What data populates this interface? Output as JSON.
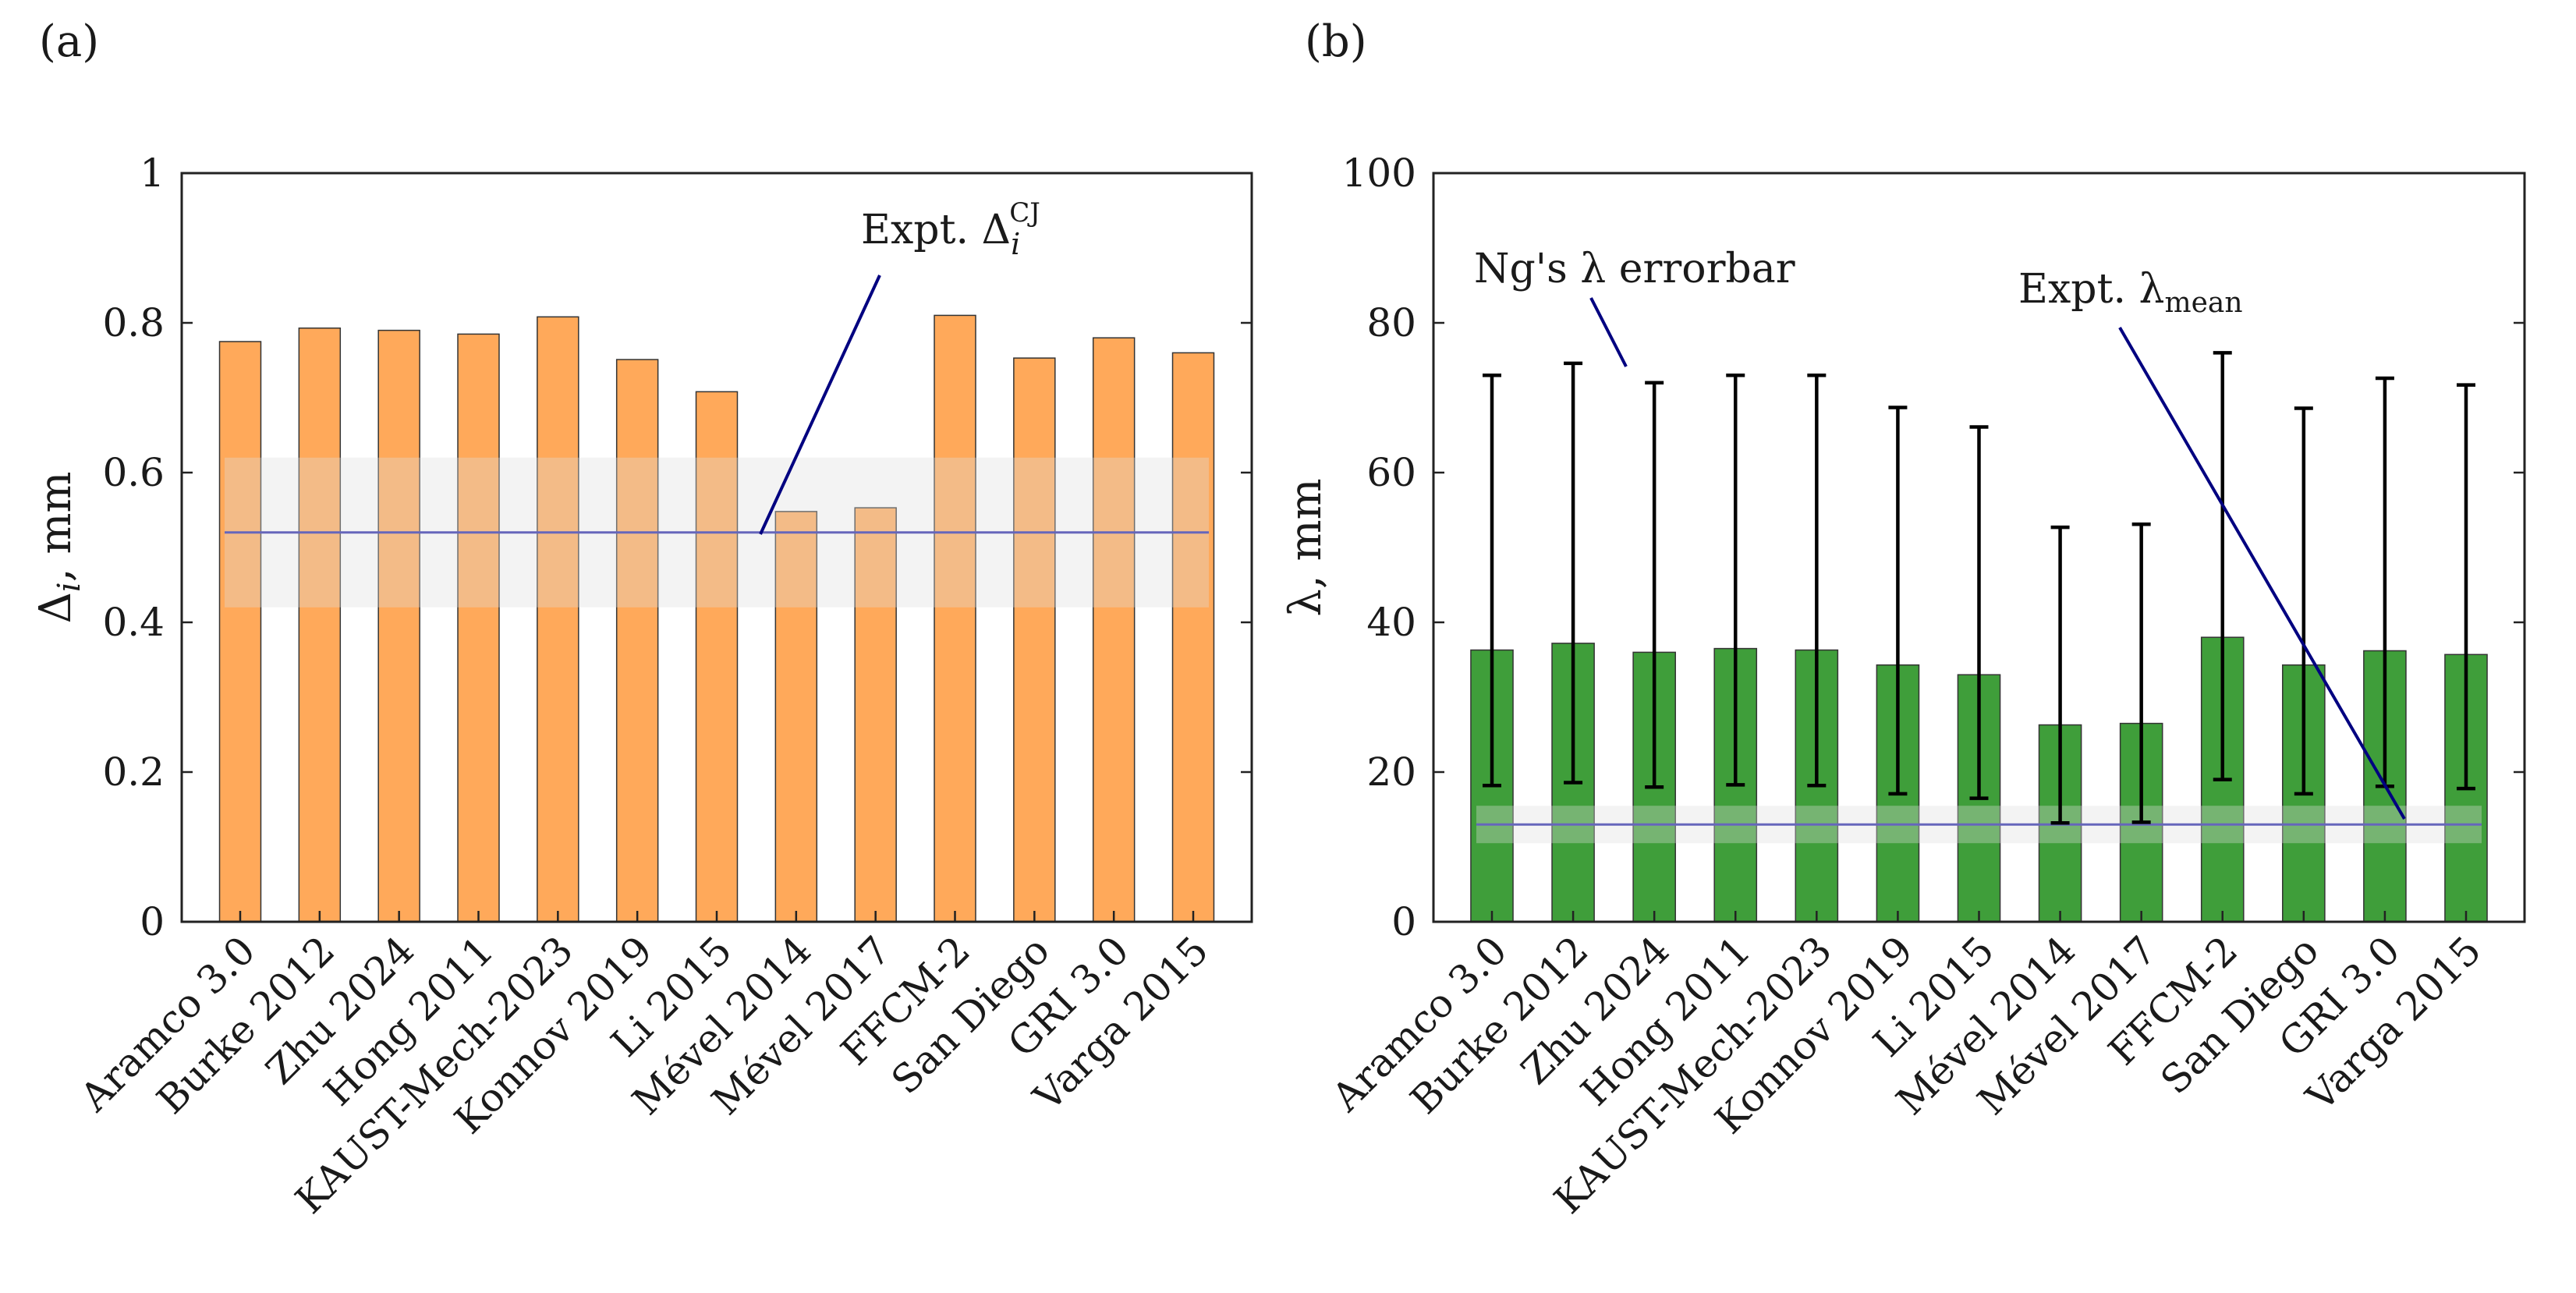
{
  "chart_data": [
    {
      "type": "bar",
      "panel_label": "(a)",
      "title": "",
      "ylabel": "Δ_i, mm",
      "ylabel_parts": {
        "symbol": "Δ",
        "sub": "i",
        "rest": ", mm"
      },
      "ylim": [
        0,
        1
      ],
      "yticks": [
        0,
        0.2,
        0.4,
        0.6,
        0.8,
        1
      ],
      "ytick_labels": [
        "0",
        "0.2",
        "0.4",
        "0.6",
        "0.8",
        "1"
      ],
      "categories": [
        "Aramco 3.0",
        "Burke 2012",
        "Zhu 2024",
        "Hong 2011",
        "KAUST-Mech-2023",
        "Konnov 2019",
        "Li 2015",
        "Mével 2014",
        "Mével 2017",
        "FFCM-2",
        "San Diego",
        "GRI 3.0",
        "Varga 2015"
      ],
      "values": [
        0.775,
        0.793,
        0.79,
        0.785,
        0.808,
        0.751,
        0.708,
        0.548,
        0.553,
        0.81,
        0.753,
        0.78,
        0.76
      ],
      "bar_color": "#ffa95a",
      "reference_line": {
        "value": 0.52,
        "band": [
          0.42,
          0.62
        ],
        "color": "#6666bb"
      },
      "annotation": {
        "text": "Expt. Δ_i^CJ",
        "main": "Expt. Δ",
        "sub": "i",
        "sup": "CJ",
        "arrow_color": "#000080"
      }
    },
    {
      "type": "bar",
      "panel_label": "(b)",
      "title": "",
      "ylabel": "λ, mm",
      "ylim": [
        0,
        100
      ],
      "yticks": [
        0,
        20,
        40,
        60,
        80,
        100
      ],
      "ytick_labels": [
        "0",
        "20",
        "40",
        "60",
        "80",
        "100"
      ],
      "categories": [
        "Aramco 3.0",
        "Burke 2012",
        "Zhu 2024",
        "Hong 2011",
        "KAUST-Mech-2023",
        "Konnov 2019",
        "Li 2015",
        "Mével 2014",
        "Mével 2017",
        "FFCM-2",
        "San Diego",
        "GRI 3.0",
        "Varga 2015"
      ],
      "values": [
        36.3,
        37.2,
        36.0,
        36.5,
        36.3,
        34.3,
        33.0,
        26.3,
        26.5,
        38.0,
        34.3,
        36.2,
        35.7
      ],
      "error_low": [
        18.2,
        18.6,
        18.0,
        18.3,
        18.2,
        17.1,
        16.5,
        13.2,
        13.3,
        19.0,
        17.1,
        18.1,
        17.8
      ],
      "error_high": [
        73.0,
        74.6,
        72.0,
        73.0,
        73.0,
        68.7,
        66.1,
        52.7,
        53.1,
        76.0,
        68.6,
        72.6,
        71.7
      ],
      "bar_color": "#3f9e3a",
      "reference_line": {
        "value": 13.0,
        "band": [
          10.5,
          15.5
        ],
        "color": "#6666bb"
      },
      "annotations": [
        {
          "text": "Ng's λ errorbar",
          "arrow_color": "#000080"
        },
        {
          "text": "Expt. λ_mean",
          "main": "Expt. λ",
          "sub": "mean",
          "arrow_color": "#000080"
        }
      ]
    }
  ]
}
